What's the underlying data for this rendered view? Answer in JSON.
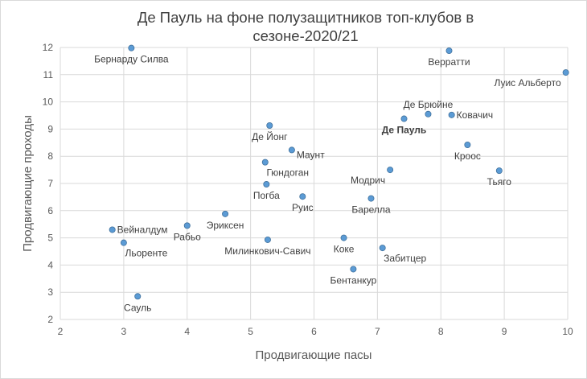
{
  "chart_data": {
    "type": "scatter",
    "title_lines": [
      "Де Пауль на фоне полузащитников топ-клубов в",
      "сезоне-2020/21"
    ],
    "xlabel": "Продвигающие пасы",
    "ylabel": "Продвигающие проходы",
    "xlim": [
      2,
      10
    ],
    "ylim": [
      2,
      12
    ],
    "x_ticks": [
      "2",
      "3",
      "4",
      "5",
      "6",
      "7",
      "8",
      "9",
      "10"
    ],
    "y_ticks": [
      "2",
      "3",
      "4",
      "5",
      "6",
      "7",
      "8",
      "9",
      "10",
      "11",
      "12"
    ],
    "grid": "vertical and horizontal",
    "marker_color": "#5b9bd5",
    "points": [
      {
        "label": "Бернарду Силва",
        "x": 3.12,
        "y": 11.98,
        "pos": "below"
      },
      {
        "label": "Верратти",
        "x": 8.13,
        "y": 11.88,
        "pos": "below"
      },
      {
        "label": "Луис Альберто",
        "x": 9.97,
        "y": 11.08,
        "pos": "below-left"
      },
      {
        "label": "Де Брюйне",
        "x": 7.8,
        "y": 9.55,
        "pos": "above"
      },
      {
        "label": "Ковачич",
        "x": 8.17,
        "y": 9.52,
        "pos": "right"
      },
      {
        "label": "Де Пауль",
        "x": 7.42,
        "y": 9.38,
        "pos": "below",
        "bold": true
      },
      {
        "label": "Де Йонг",
        "x": 5.3,
        "y": 9.13,
        "pos": "below"
      },
      {
        "label": "Кроос",
        "x": 8.42,
        "y": 8.42,
        "pos": "below"
      },
      {
        "label": "Маунт",
        "x": 5.65,
        "y": 8.23,
        "pos": "right-below"
      },
      {
        "label": "Гюндоган",
        "x": 5.23,
        "y": 7.78,
        "pos": "below-right"
      },
      {
        "label": "Модрич",
        "x": 7.2,
        "y": 7.5,
        "pos": "below-left"
      },
      {
        "label": "Тьяго",
        "x": 8.92,
        "y": 7.47,
        "pos": "below"
      },
      {
        "label": "Погба",
        "x": 5.25,
        "y": 6.97,
        "pos": "below"
      },
      {
        "label": "Руис",
        "x": 5.82,
        "y": 6.52,
        "pos": "below"
      },
      {
        "label": "Барелла",
        "x": 6.9,
        "y": 6.45,
        "pos": "below"
      },
      {
        "label": "Эриксен",
        "x": 4.6,
        "y": 5.88,
        "pos": "below"
      },
      {
        "label": "Рабьо",
        "x": 4.0,
        "y": 5.45,
        "pos": "below"
      },
      {
        "label": "Вейналдум",
        "x": 2.82,
        "y": 5.3,
        "pos": "right"
      },
      {
        "label": "Коке",
        "x": 6.47,
        "y": 5.0,
        "pos": "below"
      },
      {
        "label": "Милинкович-Савич",
        "x": 5.27,
        "y": 4.93,
        "pos": "below"
      },
      {
        "label": "Льоренте",
        "x": 3.0,
        "y": 4.82,
        "pos": "below-right"
      },
      {
        "label": "Забитцер",
        "x": 7.08,
        "y": 4.63,
        "pos": "below-right"
      },
      {
        "label": "Бентанкур",
        "x": 6.62,
        "y": 3.85,
        "pos": "below"
      },
      {
        "label": "Сауль",
        "x": 3.22,
        "y": 2.85,
        "pos": "below"
      }
    ]
  }
}
